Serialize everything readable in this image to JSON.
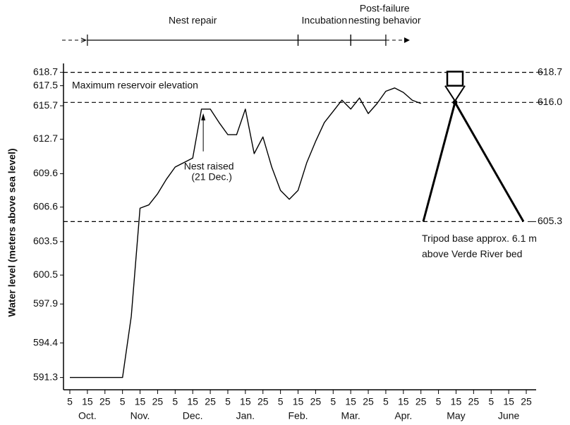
{
  "chart_data": {
    "type": "line",
    "ylabel": "Water level (meters above sea level)",
    "categories": [
      "5",
      null,
      "15",
      null,
      "25",
      null,
      "5",
      null,
      "15",
      null,
      "25",
      null,
      "5",
      null,
      "15",
      null,
      "25",
      null,
      "5",
      null,
      "15",
      null,
      "25",
      null,
      "5",
      null,
      "15",
      null,
      "25",
      null,
      "5",
      null,
      "15",
      null,
      "25",
      null,
      "5",
      null,
      "15",
      null,
      "25",
      null,
      "5",
      null,
      "15",
      null,
      "25",
      null,
      "5",
      null,
      "15",
      null,
      "25",
      null
    ],
    "months": [
      "Oct.",
      "Nov.",
      "Dec.",
      "Jan.",
      "Feb.",
      "Mar.",
      "Apr.",
      "May",
      "June"
    ],
    "values": [
      591.3,
      591.3,
      591.3,
      591.3,
      591.3,
      591.3,
      591.3,
      596.8,
      606.5,
      606.8,
      607.8,
      609.1,
      610.2,
      610.6,
      611.0,
      615.4,
      615.4,
      614.2,
      613.1,
      613.1,
      615.4,
      611.4,
      612.9,
      610.2,
      608.1,
      607.3,
      608.1,
      610.6,
      612.5,
      614.2,
      615.2,
      616.2,
      615.4,
      616.4,
      615.0,
      615.9,
      617.0,
      617.3,
      616.9,
      616.2,
      615.9,
      null,
      null,
      null,
      null,
      null,
      null,
      null,
      null,
      null,
      null,
      null,
      null,
      null
    ],
    "color": "#000000",
    "ylim": [
      590.2,
      619.5
    ],
    "yticks": [
      591.3,
      594.4,
      597.9,
      600.5,
      603.5,
      606.6,
      609.6,
      612.7,
      615.7,
      617.5,
      618.7
    ],
    "ref_lines": [
      {
        "value": 618.7,
        "label": "618.7"
      },
      {
        "value": 616.0,
        "label": "616.0"
      },
      {
        "value": 605.3,
        "label": "605.3"
      }
    ],
    "max_label": "Maximum reservoir elevation",
    "nest_annotation": [
      "Nest raised",
      "(21 Dec.)"
    ],
    "tripod_annotation": [
      "Tripod base approx. 6.1 m",
      "above Verde River bed"
    ],
    "phases": [
      {
        "lines": [
          "Nest repair"
        ],
        "range": [
          2,
          26
        ]
      },
      {
        "lines": [
          "Incubation"
        ],
        "range": [
          26,
          32
        ]
      },
      {
        "lines": [
          "Post-failure",
          "nesting behavior"
        ],
        "range": [
          32,
          36
        ]
      }
    ]
  }
}
